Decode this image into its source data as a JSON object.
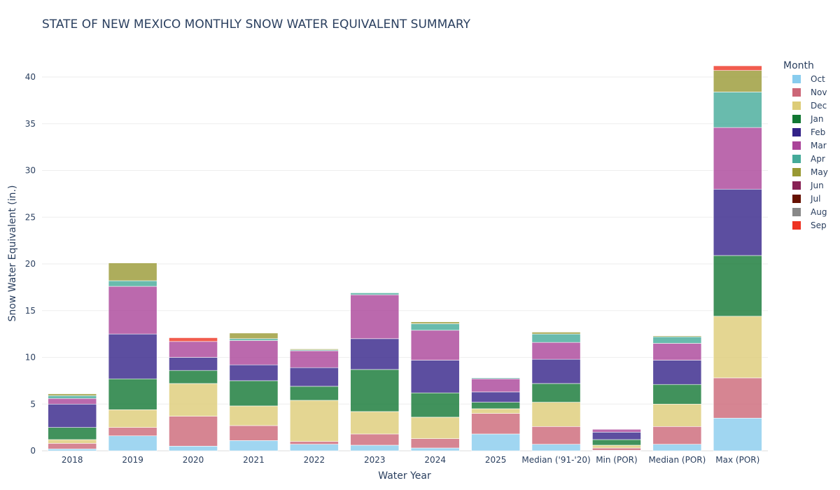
{
  "chart_data": {
    "type": "bar",
    "stacked": true,
    "title": "STATE OF NEW MEXICO MONTHLY SNOW WATER EQUIVALENT SUMMARY",
    "xlabel": "Water Year",
    "ylabel": "Snow Water Equivalent (in.)",
    "ylim": [
      0,
      43
    ],
    "yticks": [
      0,
      5,
      10,
      15,
      20,
      25,
      30,
      35,
      40
    ],
    "grid": true,
    "legend_title": "Month",
    "legend_position": "right",
    "categories": [
      "2018",
      "2019",
      "2020",
      "2021",
      "2022",
      "2023",
      "2024",
      "2025",
      "Median ('91-'20)",
      "Min (POR)",
      "Median (POR)",
      "Max (POR)"
    ],
    "series": [
      {
        "name": "Oct",
        "color": "#88CCEE",
        "values": [
          0.2,
          1.6,
          0.5,
          1.1,
          0.7,
          0.6,
          0.3,
          1.8,
          0.7,
          0.05,
          0.7,
          3.5
        ]
      },
      {
        "name": "Nov",
        "color": "#CC6677",
        "values": [
          0.6,
          0.9,
          3.2,
          1.6,
          0.3,
          1.2,
          1.0,
          2.2,
          1.9,
          0.25,
          1.9,
          4.3
        ]
      },
      {
        "name": "Dec",
        "color": "#DDCC77",
        "values": [
          0.4,
          1.9,
          3.5,
          2.1,
          4.4,
          2.4,
          2.3,
          0.5,
          2.6,
          0.3,
          2.4,
          6.6
        ]
      },
      {
        "name": "Jan",
        "color": "#117733",
        "values": [
          1.3,
          3.3,
          1.4,
          2.7,
          1.5,
          4.5,
          2.6,
          0.7,
          2.0,
          0.6,
          2.1,
          6.5
        ]
      },
      {
        "name": "Feb",
        "color": "#332288",
        "values": [
          2.5,
          4.8,
          1.4,
          1.7,
          2.0,
          3.3,
          3.5,
          1.1,
          2.6,
          0.8,
          2.6,
          7.1
        ]
      },
      {
        "name": "Mar",
        "color": "#AA4499",
        "values": [
          0.6,
          5.1,
          1.7,
          2.6,
          1.8,
          4.7,
          3.2,
          1.4,
          1.8,
          0.3,
          1.8,
          6.6
        ]
      },
      {
        "name": "Apr",
        "color": "#44AA99",
        "values": [
          0.3,
          0.6,
          0.0,
          0.2,
          0.1,
          0.2,
          0.7,
          0.1,
          0.9,
          0.0,
          0.7,
          3.8
        ]
      },
      {
        "name": "May",
        "color": "#999933",
        "values": [
          0.2,
          1.9,
          0.0,
          0.6,
          0.1,
          0.0,
          0.2,
          0.0,
          0.2,
          0.0,
          0.1,
          2.3
        ]
      },
      {
        "name": "Jun",
        "color": "#882255",
        "values": [
          0,
          0,
          0,
          0,
          0,
          0,
          0,
          0,
          0,
          0,
          0,
          0
        ]
      },
      {
        "name": "Jul",
        "color": "#661100",
        "values": [
          0,
          0,
          0,
          0,
          0,
          0,
          0,
          0,
          0,
          0,
          0,
          0
        ]
      },
      {
        "name": "Aug",
        "color": "#888888",
        "values": [
          0,
          0,
          0,
          0,
          0,
          0,
          0,
          0,
          0,
          0,
          0,
          0
        ]
      },
      {
        "name": "Sep",
        "color": "#EE3322",
        "values": [
          0.0,
          0.0,
          0.4,
          0.0,
          0.0,
          0.0,
          0.0,
          0.0,
          0.0,
          0.0,
          0.0,
          0.5
        ]
      }
    ]
  }
}
